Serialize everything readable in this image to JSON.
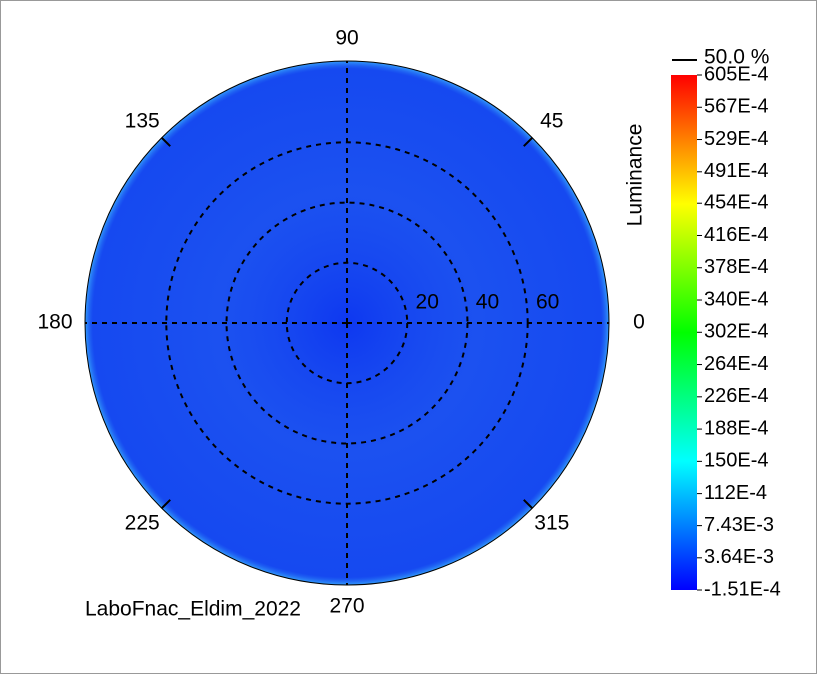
{
  "chart_data": {
    "type": "polar_map",
    "angle_ticks": [
      0,
      45,
      90,
      135,
      180,
      225,
      270,
      315
    ],
    "rlim": [
      0,
      87
    ],
    "rticks": [
      20,
      40,
      60
    ],
    "disc_color": "#1446f0",
    "colorbar_label": "Luminance",
    "marker_label": "50.0 %",
    "clim": [
      -0.000151,
      0.0605
    ],
    "colormap": [
      "#0000ff",
      "#00ffff",
      "#00ff00",
      "#ffff00",
      "#ff0000"
    ],
    "cticks": [
      {
        "value": -0.000151,
        "label": "-1.51E-4"
      },
      {
        "value": 0.00364,
        "label": "3.64E-3"
      },
      {
        "value": 0.00743,
        "label": "7.43E-3"
      },
      {
        "value": 0.0112,
        "label": "112E-4"
      },
      {
        "value": 0.015,
        "label": "150E-4"
      },
      {
        "value": 0.0188,
        "label": "188E-4"
      },
      {
        "value": 0.0226,
        "label": "226E-4"
      },
      {
        "value": 0.0264,
        "label": "264E-4"
      },
      {
        "value": 0.0302,
        "label": "302E-4"
      },
      {
        "value": 0.034,
        "label": "340E-4"
      },
      {
        "value": 0.0378,
        "label": "378E-4"
      },
      {
        "value": 0.0416,
        "label": "416E-4"
      },
      {
        "value": 0.0454,
        "label": "454E-4"
      },
      {
        "value": 0.0491,
        "label": "491E-4"
      },
      {
        "value": 0.0529,
        "label": "529E-4"
      },
      {
        "value": 0.0567,
        "label": "567E-4"
      },
      {
        "value": 0.0605,
        "label": "605E-4"
      }
    ],
    "footer": "LaboFnac_Eldim_2022"
  }
}
